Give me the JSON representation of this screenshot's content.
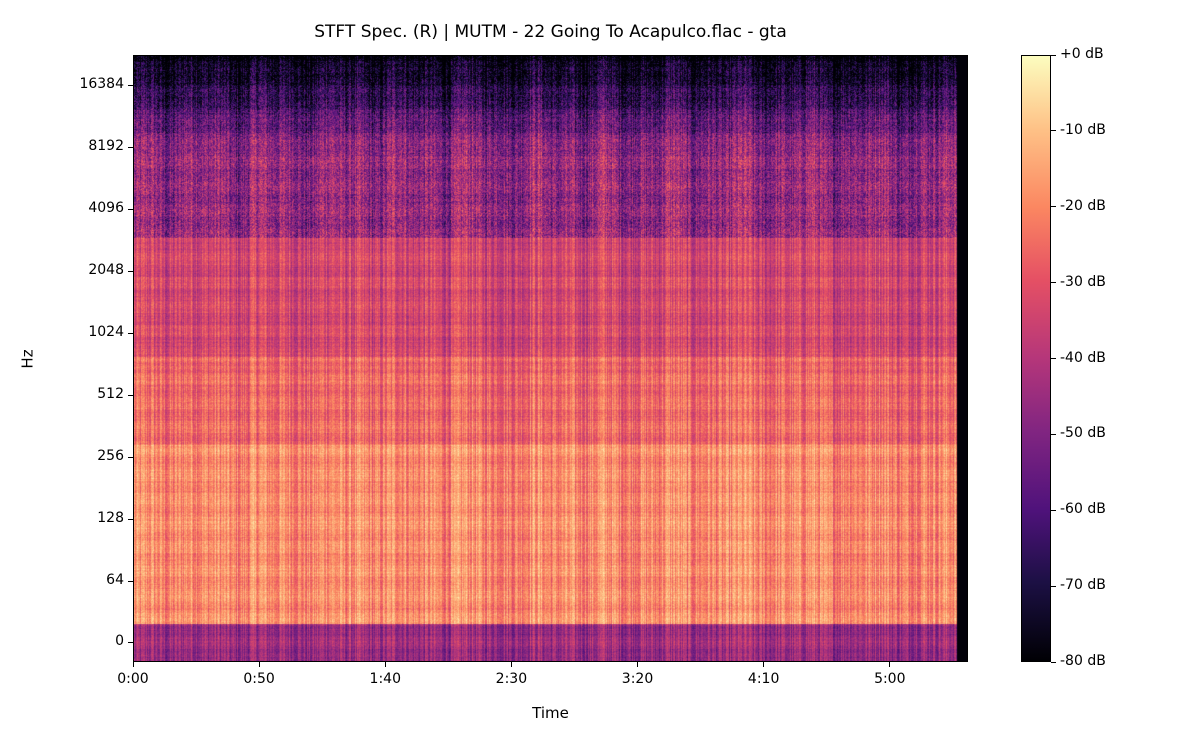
{
  "chart_data": {
    "type": "heatmap",
    "title": "STFT Spec. (R) | MUTM - 22 Going To Acapulco.flac - gta",
    "xlabel": "Time",
    "ylabel": "Hz",
    "x_ticks": [
      {
        "seconds": 0,
        "label": "0:00"
      },
      {
        "seconds": 50,
        "label": "0:50"
      },
      {
        "seconds": 100,
        "label": "1:40"
      },
      {
        "seconds": 150,
        "label": "2:30"
      },
      {
        "seconds": 200,
        "label": "3:20"
      },
      {
        "seconds": 250,
        "label": "4:10"
      },
      {
        "seconds": 300,
        "label": "5:00"
      }
    ],
    "y_ticks": [
      {
        "hz": 0,
        "label": "0"
      },
      {
        "hz": 64,
        "label": "64"
      },
      {
        "hz": 128,
        "label": "128"
      },
      {
        "hz": 256,
        "label": "256"
      },
      {
        "hz": 512,
        "label": "512"
      },
      {
        "hz": 1024,
        "label": "1024"
      },
      {
        "hz": 2048,
        "label": "2048"
      },
      {
        "hz": 4096,
        "label": "4096"
      },
      {
        "hz": 8192,
        "label": "8192"
      },
      {
        "hz": 16384,
        "label": "16384"
      }
    ],
    "y_scale": "log",
    "x_range_seconds": [
      0,
      331
    ],
    "audio_end_seconds": 326,
    "y_range_hz": [
      0,
      22050
    ],
    "colormap": "magma",
    "colorbar": {
      "range_db": [
        -80,
        0
      ],
      "ticks": [
        {
          "db": 0,
          "label": "+0 dB"
        },
        {
          "db": -10,
          "label": "-10 dB"
        },
        {
          "db": -20,
          "label": "-20 dB"
        },
        {
          "db": -30,
          "label": "-30 dB"
        },
        {
          "db": -40,
          "label": "-40 dB"
        },
        {
          "db": -50,
          "label": "-50 dB"
        },
        {
          "db": -60,
          "label": "-60 dB"
        },
        {
          "db": -70,
          "label": "-70 dB"
        },
        {
          "db": -80,
          "label": "-80 dB"
        }
      ]
    },
    "grid": false
  }
}
